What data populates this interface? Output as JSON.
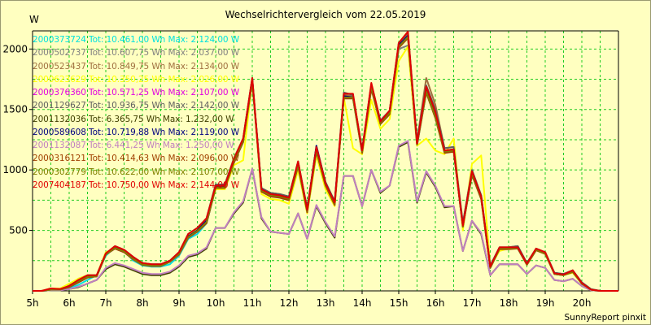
{
  "chart_data": {
    "type": "line",
    "title": "Wechselrichtervergleich vom 22.05.2019",
    "ylabel": "W",
    "credit": "SunnyReport pinxit",
    "xlim": [
      5,
      21
    ],
    "ylim": [
      0,
      2150
    ],
    "x_tick_labels": [
      "5h",
      "6h",
      "7h",
      "8h",
      "9h",
      "10h",
      "11h",
      "12h",
      "13h",
      "14h",
      "15h",
      "16h",
      "17h",
      "18h",
      "19h",
      "20h"
    ],
    "y_tick_labels": [
      "500",
      "1000",
      "1500",
      "2000"
    ],
    "y_ticks": [
      500,
      1000,
      1500,
      2000
    ],
    "grid": true,
    "legend_position": "top-left",
    "colors": {
      "background": "#ffffc0",
      "plot_background": "#ffffc0",
      "grid": "#22cc22",
      "axis": "#000000"
    },
    "x": [
      5,
      5.25,
      5.5,
      5.75,
      6,
      6.25,
      6.5,
      6.75,
      7,
      7.25,
      7.5,
      7.75,
      8,
      8.25,
      8.5,
      8.75,
      9,
      9.25,
      9.5,
      9.75,
      10,
      10.25,
      10.5,
      10.75,
      11,
      11.25,
      11.5,
      11.75,
      12,
      12.25,
      12.5,
      12.75,
      13,
      13.25,
      13.5,
      13.75,
      14,
      14.25,
      14.5,
      14.75,
      15,
      15.25,
      15.5,
      15.75,
      16,
      16.25,
      16.5,
      16.75,
      17,
      17.25,
      17.5,
      17.75,
      18,
      18.25,
      18.5,
      18.75,
      19,
      19.25,
      19.5,
      19.75,
      20,
      20.25,
      20.5,
      20.75,
      21
    ],
    "series": [
      {
        "name": "2000373724 Tot: 10.461,00 Wh Max: 2.124,00 W",
        "color": "#00e0e0",
        "values": [
          0,
          0,
          5,
          5,
          20,
          50,
          90,
          130,
          290,
          360,
          330,
          250,
          210,
          200,
          200,
          220,
          290,
          430,
          470,
          560,
          850,
          850,
          1070,
          1230,
          1740,
          830,
          790,
          780,
          760,
          1040,
          660,
          1160,
          880,
          720,
          1600,
          1590,
          1150,
          1680,
          1390,
          1470,
          2020,
          2120,
          1220,
          1650,
          1440,
          1150,
          1160,
          530,
          970,
          770,
          190,
          350,
          350,
          350,
          220,
          340,
          310,
          140,
          130,
          160,
          60,
          10,
          0,
          0,
          0
        ]
      },
      {
        "name": "2000502737 Tot: 10.607,75 Wh Max: 2.037,00 W",
        "color": "#808080",
        "values": [
          0,
          0,
          10,
          10,
          35,
          80,
          120,
          120,
          300,
          350,
          320,
          260,
          220,
          210,
          210,
          240,
          300,
          440,
          490,
          560,
          850,
          850,
          1060,
          1230,
          1740,
          830,
          790,
          780,
          760,
          1040,
          660,
          1160,
          880,
          720,
          1600,
          1600,
          1150,
          1680,
          1380,
          1460,
          2000,
          2030,
          1200,
          1640,
          1430,
          1150,
          1160,
          530,
          960,
          760,
          190,
          350,
          350,
          350,
          220,
          340,
          310,
          140,
          130,
          160,
          60,
          10,
          0,
          0,
          0
        ]
      },
      {
        "name": "2000523437 Tot: 10.849,75 Wh Max: 2.134,00 W",
        "color": "#a07040",
        "values": [
          0,
          0,
          20,
          15,
          45,
          100,
          130,
          130,
          310,
          370,
          340,
          280,
          230,
          220,
          220,
          250,
          320,
          470,
          520,
          600,
          880,
          880,
          1100,
          1260,
          1760,
          850,
          810,
          800,
          780,
          1070,
          680,
          1190,
          900,
          740,
          1620,
          1610,
          1170,
          1700,
          1400,
          1490,
          2040,
          2130,
          1240,
          1760,
          1540,
          1180,
          1190,
          560,
          1000,
          790,
          210,
          360,
          360,
          370,
          230,
          350,
          320,
          150,
          140,
          170,
          70,
          15,
          0,
          0,
          0
        ]
      },
      {
        "name": "2000623629 Tot: 10.350,25 Wh Max: 2.026,00 W",
        "color": "#ffff00",
        "values": [
          0,
          0,
          20,
          20,
          60,
          100,
          130,
          130,
          320,
          350,
          320,
          260,
          220,
          210,
          210,
          250,
          310,
          460,
          510,
          580,
          840,
          840,
          1040,
          1080,
          1740,
          800,
          760,
          750,
          720,
          1000,
          640,
          1120,
          840,
          700,
          1600,
          1180,
          1130,
          1580,
          1340,
          1420,
          1900,
          2020,
          1200,
          1260,
          1160,
          1130,
          1260,
          500,
          1050,
          1120,
          200,
          330,
          350,
          370,
          220,
          340,
          310,
          140,
          130,
          150,
          60,
          10,
          0,
          0,
          0
        ]
      },
      {
        "name": "2000376360 Tot: 10.571,25 Wh Max: 2.107,00 W",
        "color": "#e000e0",
        "values": [
          0,
          0,
          10,
          10,
          30,
          70,
          110,
          120,
          300,
          350,
          320,
          260,
          220,
          210,
          210,
          240,
          300,
          440,
          490,
          570,
          860,
          860,
          1070,
          1240,
          1740,
          830,
          790,
          780,
          760,
          1040,
          660,
          1160,
          880,
          720,
          1600,
          1600,
          1150,
          1690,
          1390,
          1470,
          2020,
          2100,
          1210,
          1650,
          1440,
          1150,
          1160,
          530,
          970,
          770,
          190,
          350,
          350,
          350,
          220,
          340,
          310,
          140,
          130,
          160,
          60,
          10,
          0,
          0,
          0
        ]
      },
      {
        "name": "2001129627 Tot: 10.936,75 Wh Max: 2.142,00 W",
        "color": "#606060",
        "values": [
          0,
          0,
          15,
          15,
          40,
          90,
          130,
          130,
          310,
          370,
          340,
          280,
          230,
          220,
          220,
          250,
          320,
          470,
          520,
          600,
          880,
          880,
          1090,
          1260,
          1760,
          850,
          810,
          800,
          780,
          1070,
          680,
          1190,
          900,
          740,
          1640,
          1620,
          1170,
          1710,
          1410,
          1490,
          2050,
          2140,
          1240,
          1700,
          1500,
          1180,
          1190,
          560,
          1000,
          790,
          210,
          360,
          360,
          370,
          230,
          350,
          320,
          150,
          140,
          170,
          70,
          15,
          0,
          0,
          0
        ]
      },
      {
        "name": "2001132036 Tot: 6.365,75 Wh Max: 1.232,00 W",
        "color": "#404000",
        "values": [
          0,
          0,
          5,
          5,
          15,
          30,
          60,
          90,
          180,
          220,
          200,
          170,
          140,
          130,
          130,
          150,
          200,
          280,
          300,
          350,
          520,
          520,
          640,
          730,
          1010,
          600,
          490,
          480,
          470,
          640,
          430,
          700,
          560,
          440,
          950,
          950,
          700,
          1000,
          810,
          870,
          1190,
          1230,
          730,
          980,
          860,
          690,
          700,
          330,
          580,
          470,
          130,
          220,
          220,
          220,
          140,
          210,
          190,
          90,
          80,
          100,
          40,
          5,
          0,
          0,
          0
        ]
      },
      {
        "name": "2000589608 Tot: 10.719,88 Wh Max: 2.119,00 W",
        "color": "#000080",
        "values": [
          0,
          0,
          10,
          10,
          35,
          80,
          120,
          120,
          300,
          360,
          330,
          270,
          230,
          215,
          215,
          245,
          310,
          450,
          500,
          580,
          860,
          860,
          1080,
          1250,
          1750,
          840,
          800,
          790,
          770,
          1050,
          670,
          1200,
          890,
          730,
          1610,
          1600,
          1160,
          1690,
          1400,
          1480,
          2030,
          2110,
          1220,
          1660,
          1460,
          1160,
          1170,
          540,
          980,
          780,
          200,
          350,
          355,
          360,
          225,
          345,
          315,
          145,
          135,
          165,
          65,
          10,
          0,
          0,
          0
        ]
      },
      {
        "name": "2001132087 Tot: 6.441,25 Wh Max: 1.250,00 W",
        "color": "#c080c0",
        "values": [
          0,
          0,
          5,
          5,
          15,
          35,
          60,
          90,
          190,
          230,
          210,
          180,
          150,
          140,
          140,
          160,
          210,
          290,
          310,
          360,
          520,
          520,
          650,
          740,
          1010,
          610,
          490,
          480,
          470,
          640,
          430,
          710,
          570,
          450,
          950,
          950,
          700,
          1000,
          820,
          870,
          1200,
          1240,
          740,
          990,
          870,
          700,
          700,
          330,
          580,
          480,
          130,
          220,
          220,
          220,
          140,
          210,
          190,
          90,
          80,
          100,
          40,
          5,
          0,
          0,
          0
        ]
      },
      {
        "name": "2000316121 Tot: 10.414,63 Wh Max: 2.096,00 W",
        "color": "#a04000",
        "values": [
          0,
          0,
          10,
          10,
          30,
          70,
          110,
          120,
          300,
          350,
          320,
          260,
          215,
          205,
          205,
          240,
          300,
          440,
          490,
          560,
          850,
          850,
          1060,
          1230,
          1730,
          820,
          780,
          770,
          750,
          1030,
          650,
          1150,
          870,
          710,
          1590,
          1590,
          1140,
          1670,
          1380,
          1460,
          2010,
          2090,
          1210,
          1640,
          1430,
          1140,
          1150,
          530,
          960,
          760,
          190,
          345,
          345,
          350,
          215,
          335,
          305,
          140,
          130,
          155,
          60,
          10,
          0,
          0,
          0
        ]
      },
      {
        "name": "2000302779 Tot: 10.622,00 Wh Max: 2.107,00 W",
        "color": "#808000",
        "values": [
          0,
          0,
          10,
          10,
          35,
          80,
          115,
          120,
          300,
          355,
          325,
          265,
          220,
          210,
          210,
          240,
          305,
          445,
          495,
          570,
          855,
          855,
          1070,
          1240,
          1740,
          830,
          790,
          780,
          760,
          1040,
          660,
          1160,
          880,
          720,
          1600,
          1600,
          1150,
          1690,
          1390,
          1470,
          2020,
          2100,
          1210,
          1650,
          1440,
          1150,
          1160,
          530,
          970,
          770,
          190,
          350,
          350,
          355,
          220,
          340,
          310,
          140,
          130,
          160,
          60,
          10,
          0,
          0,
          0
        ]
      },
      {
        "name": "2007404187 Tot: 10.750,00 Wh Max: 2.144,00 W",
        "color": "#e00000",
        "values": [
          0,
          0,
          20,
          15,
          40,
          90,
          130,
          130,
          310,
          370,
          340,
          280,
          230,
          220,
          220,
          250,
          320,
          470,
          520,
          600,
          870,
          870,
          1090,
          1260,
          1760,
          840,
          800,
          790,
          770,
          1070,
          670,
          1190,
          890,
          730,
          1630,
          1630,
          1160,
          1720,
          1400,
          1490,
          2050,
          2144,
          1220,
          1690,
          1480,
          1160,
          1170,
          540,
          990,
          780,
          200,
          360,
          360,
          360,
          225,
          350,
          320,
          145,
          135,
          170,
          65,
          10,
          0,
          0,
          0
        ]
      }
    ]
  }
}
